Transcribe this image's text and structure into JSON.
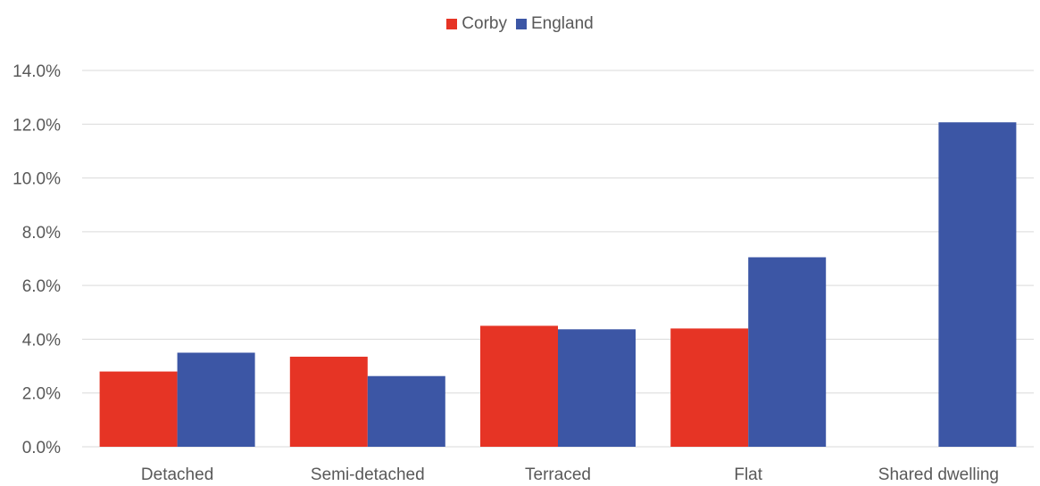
{
  "chart_data": {
    "type": "bar",
    "title": "",
    "xlabel": "",
    "ylabel": "",
    "categories": [
      "Detached",
      "Semi-detached",
      "Terraced",
      "Flat",
      "Shared dwelling"
    ],
    "series": [
      {
        "name": "Corby",
        "color": "#e63425",
        "values": [
          2.8,
          3.35,
          4.5,
          4.4,
          0.0
        ]
      },
      {
        "name": "England",
        "color": "#3c56a5",
        "values": [
          3.5,
          2.63,
          4.37,
          7.05,
          12.07
        ]
      }
    ],
    "ylim": [
      0,
      14
    ],
    "y_ticks": [
      0,
      2,
      4,
      6,
      8,
      10,
      12,
      14
    ],
    "y_tick_labels": [
      "0.0%",
      "2.0%",
      "4.0%",
      "6.0%",
      "8.0%",
      "10.0%",
      "12.0%",
      "14.0%"
    ],
    "grid": true,
    "legend_position": "top-center"
  }
}
